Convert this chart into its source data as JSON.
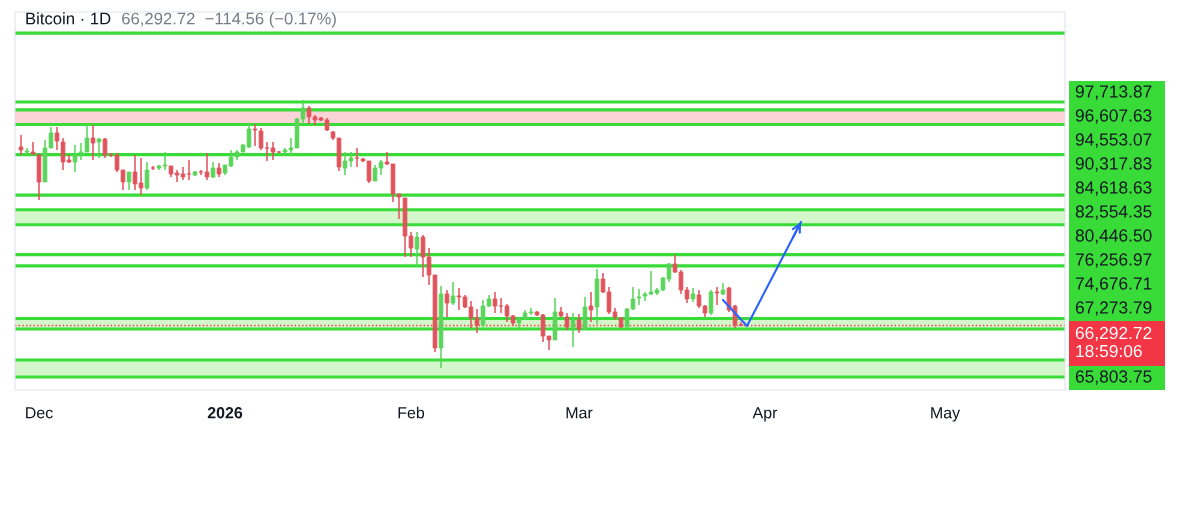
{
  "chart_data": {
    "type": "candlestick",
    "title": "Bitcoin · 1D",
    "subtitle": "66,292.72  −114.56 (−0.17%)",
    "xlim": [
      "2025-11-27",
      "2026-05-21"
    ],
    "ylim": [
      57220,
      110370
    ],
    "xticks": [
      {
        "value": "2025-12-01",
        "label": "Dec"
      },
      {
        "value": "2026-01-01",
        "label": "2026"
      },
      {
        "value": "2026-02-01",
        "label": "Feb"
      },
      {
        "value": "2026-03-01",
        "label": "Mar"
      },
      {
        "value": "2026-04-01",
        "label": "Apr"
      },
      {
        "value": "2026-05-01",
        "label": "May"
      }
    ],
    "tick_labels": "x",
    "grid": false,
    "series": [
      {
        "x": [
          "2025-11-28",
          "2025-11-29",
          "2025-11-30",
          "2025-12-01",
          "2025-12-02",
          "2025-12-03",
          "2025-12-04",
          "2025-12-05",
          "2025-12-06",
          "2025-12-07",
          "2025-12-08",
          "2025-12-09",
          "2025-12-10",
          "2025-12-11",
          "2025-12-12",
          "2025-12-13",
          "2025-12-14",
          "2025-12-15",
          "2025-12-16",
          "2025-12-17",
          "2025-12-18",
          "2025-12-19",
          "2025-12-20",
          "2025-12-21",
          "2025-12-22",
          "2025-12-23",
          "2025-12-24",
          "2025-12-25",
          "2025-12-26",
          "2025-12-27",
          "2025-12-28",
          "2025-12-29",
          "2025-12-30",
          "2025-12-31",
          "2026-01-01",
          "2026-01-02",
          "2026-01-03",
          "2026-01-04",
          "2026-01-05",
          "2026-01-06",
          "2026-01-07",
          "2026-01-08",
          "2026-01-09",
          "2026-01-10",
          "2026-01-11",
          "2026-01-12",
          "2026-01-13",
          "2026-01-14",
          "2026-01-15",
          "2026-01-16",
          "2026-01-17",
          "2026-01-18",
          "2026-01-19",
          "2026-01-20",
          "2026-01-21",
          "2026-01-22",
          "2026-01-23",
          "2026-01-24",
          "2026-01-25",
          "2026-01-26",
          "2026-01-27",
          "2026-01-28",
          "2026-01-29",
          "2026-01-30",
          "2026-01-31",
          "2026-02-01",
          "2026-02-02",
          "2026-02-03",
          "2026-02-04",
          "2026-02-05",
          "2026-02-06",
          "2026-02-07",
          "2026-02-08",
          "2026-02-09",
          "2026-02-10",
          "2026-02-11",
          "2026-02-12",
          "2026-02-13",
          "2026-02-14",
          "2026-02-15",
          "2026-02-16",
          "2026-02-17",
          "2026-02-18",
          "2026-02-19",
          "2026-02-20",
          "2026-02-21",
          "2026-02-22",
          "2026-02-23",
          "2026-02-24",
          "2026-02-25",
          "2026-02-26",
          "2026-02-27",
          "2026-02-28",
          "2026-03-01",
          "2026-03-02",
          "2026-03-03",
          "2026-03-04",
          "2026-03-05",
          "2026-03-06",
          "2026-03-07",
          "2026-03-08",
          "2026-03-09",
          "2026-03-10",
          "2026-03-11",
          "2026-03-12",
          "2026-03-13",
          "2026-03-14",
          "2026-03-15",
          "2026-03-16",
          "2026-03-17",
          "2026-03-18",
          "2026-03-19",
          "2026-03-20",
          "2026-03-21",
          "2026-03-22",
          "2026-03-23",
          "2026-03-24",
          "2026-03-25",
          "2026-03-26",
          "2026-03-27",
          "2026-03-28"
        ],
        "ohlc": [
          [
            91390,
            93070,
            90260,
            90970
          ],
          [
            90680,
            91250,
            90120,
            90820
          ],
          [
            90680,
            92090,
            90260,
            90400
          ],
          [
            90260,
            90400,
            83940,
            86470
          ],
          [
            86470,
            92370,
            86470,
            91250
          ],
          [
            91250,
            94200,
            91250,
            93360
          ],
          [
            93360,
            94200,
            90970,
            92230
          ],
          [
            92090,
            92650,
            88150,
            89280
          ],
          [
            89560,
            90260,
            89140,
            89280
          ],
          [
            89280,
            91670,
            87870,
            90260
          ],
          [
            90400,
            91950,
            89560,
            90680
          ],
          [
            90680,
            94480,
            90680,
            92650
          ],
          [
            92650,
            94480,
            89560,
            91950
          ],
          [
            92090,
            92650,
            89840,
            92510
          ],
          [
            92510,
            92650,
            89840,
            90260
          ],
          [
            90260,
            90540,
            89980,
            90260
          ],
          [
            90260,
            90540,
            87870,
            88150
          ],
          [
            88150,
            88150,
            85340,
            86470
          ],
          [
            86470,
            87870,
            85340,
            87870
          ],
          [
            87870,
            90260,
            85340,
            86190
          ],
          [
            86330,
            89840,
            84640,
            85620
          ],
          [
            85620,
            89280,
            85340,
            88150
          ],
          [
            88430,
            88720,
            88150,
            88430
          ],
          [
            88430,
            88860,
            88150,
            88720
          ],
          [
            88720,
            90680,
            88150,
            88860
          ],
          [
            88720,
            88720,
            87170,
            87590
          ],
          [
            87730,
            88150,
            86470,
            87450
          ],
          [
            87590,
            88580,
            86750,
            87170
          ],
          [
            87590,
            89560,
            86750,
            87590
          ],
          [
            87450,
            88010,
            87310,
            87870
          ],
          [
            87870,
            88150,
            87450,
            87870
          ],
          [
            87870,
            90540,
            86750,
            87170
          ],
          [
            87170,
            89280,
            87030,
            88430
          ],
          [
            88430,
            89140,
            87170,
            87590
          ],
          [
            87730,
            88860,
            87450,
            88860
          ],
          [
            88720,
            90970,
            88580,
            89980
          ],
          [
            89980,
            90970,
            89560,
            90680
          ],
          [
            90680,
            91810,
            90680,
            91670
          ],
          [
            91390,
            94620,
            91250,
            93920
          ],
          [
            93920,
            94620,
            91530,
            93780
          ],
          [
            93640,
            94060,
            90970,
            91250
          ],
          [
            91250,
            92090,
            89420,
            91250
          ],
          [
            91250,
            92090,
            89560,
            90680
          ],
          [
            90680,
            90820,
            90540,
            90680
          ],
          [
            90680,
            91250,
            90260,
            90970
          ],
          [
            90970,
            92650,
            90260,
            91250
          ],
          [
            91250,
            95460,
            91250,
            95320
          ],
          [
            95320,
            98000,
            94620,
            96870
          ],
          [
            96870,
            97150,
            94620,
            95610
          ],
          [
            95610,
            95890,
            94480,
            95180
          ],
          [
            95460,
            95610,
            95040,
            95180
          ],
          [
            95180,
            95460,
            93640,
            93780
          ],
          [
            93500,
            93640,
            92370,
            92650
          ],
          [
            92650,
            92650,
            88010,
            88580
          ],
          [
            88430,
            90680,
            87450,
            89420
          ],
          [
            89420,
            90680,
            88580,
            89840
          ],
          [
            89840,
            91250,
            88580,
            89840
          ],
          [
            89700,
            89840,
            89280,
            89420
          ],
          [
            89420,
            89420,
            86330,
            86610
          ],
          [
            86610,
            88860,
            86610,
            88430
          ],
          [
            88430,
            89560,
            87450,
            89280
          ],
          [
            89280,
            90680,
            88860,
            89000
          ],
          [
            89000,
            89000,
            83650,
            84780
          ],
          [
            84780,
            84780,
            81260,
            84360
          ],
          [
            84220,
            84220,
            75920,
            78870
          ],
          [
            78870,
            79440,
            75920,
            77190
          ],
          [
            77050,
            79440,
            74800,
            78730
          ],
          [
            78730,
            79010,
            73110,
            75920
          ],
          [
            75920,
            77190,
            71980,
            73390
          ],
          [
            73390,
            73390,
            62560,
            63130
          ],
          [
            63130,
            71840,
            60310,
            70720
          ],
          [
            70720,
            71280,
            67490,
            69450
          ],
          [
            69450,
            72410,
            69170,
            70440
          ],
          [
            70440,
            71560,
            68470,
            70300
          ],
          [
            70300,
            70580,
            68750,
            68890
          ],
          [
            68890,
            69730,
            65940,
            67340
          ],
          [
            67340,
            68610,
            65240,
            66360
          ],
          [
            66360,
            69880,
            66080,
            69030
          ],
          [
            69030,
            70580,
            68890,
            70020
          ],
          [
            70020,
            71000,
            68050,
            69030
          ],
          [
            69030,
            70160,
            68050,
            69030
          ],
          [
            69030,
            69310,
            66780,
            67630
          ],
          [
            67630,
            67770,
            66220,
            66640
          ],
          [
            66640,
            67340,
            65940,
            67200
          ],
          [
            67200,
            68470,
            67060,
            68050
          ],
          [
            68050,
            68750,
            67770,
            68190
          ],
          [
            68190,
            68330,
            67630,
            67770
          ],
          [
            67770,
            67910,
            63970,
            64810
          ],
          [
            64810,
            64810,
            62850,
            64250
          ],
          [
            64250,
            70160,
            64250,
            68190
          ],
          [
            68190,
            68890,
            67490,
            67630
          ],
          [
            67490,
            68050,
            65660,
            66080
          ],
          [
            66080,
            68050,
            63270,
            67060
          ],
          [
            67060,
            67910,
            65240,
            65800
          ],
          [
            65800,
            70300,
            65660,
            68890
          ],
          [
            69030,
            71000,
            66780,
            68470
          ],
          [
            68890,
            74230,
            66500,
            72830
          ],
          [
            72830,
            73670,
            70860,
            71000
          ],
          [
            71000,
            71700,
            67910,
            68190
          ],
          [
            68190,
            68750,
            67060,
            67490
          ],
          [
            67340,
            67490,
            65940,
            66080
          ],
          [
            66080,
            68750,
            66080,
            68610
          ],
          [
            68610,
            71700,
            68470,
            70020
          ],
          [
            70160,
            71420,
            69170,
            70300
          ],
          [
            70440,
            71000,
            69730,
            70720
          ],
          [
            70720,
            73950,
            70580,
            71000
          ],
          [
            70860,
            71560,
            70580,
            71280
          ],
          [
            71280,
            73110,
            71140,
            72970
          ],
          [
            72830,
            75080,
            72410,
            74940
          ],
          [
            74940,
            76200,
            73670,
            73810
          ],
          [
            73810,
            74090,
            70720,
            71280
          ],
          [
            71280,
            71700,
            69450,
            70020
          ],
          [
            70020,
            71560,
            69590,
            70720
          ],
          [
            70580,
            71280,
            68750,
            69030
          ],
          [
            69030,
            69170,
            67490,
            68050
          ],
          [
            68050,
            71280,
            67770,
            71000
          ],
          [
            71000,
            71700,
            69170,
            70860
          ],
          [
            70720,
            72270,
            70580,
            71280
          ],
          [
            71560,
            71700,
            68190,
            68470
          ],
          [
            69030,
            69170,
            65940,
            66410
          ],
          [
            66410,
            66780,
            66220,
            66292.72
          ]
        ],
        "colors": [
          "#e0525c",
          "#5bd45b",
          "#e0525c",
          "#e0525c",
          "#5bd45b",
          "#5bd45b",
          "#e0525c",
          "#e0525c",
          "#e0525c",
          "#5bd45b",
          "#5bd45b",
          "#5bd45b",
          "#e0525c",
          "#5bd45b",
          "#e0525c",
          "#e0525c",
          "#e0525c",
          "#e0525c",
          "#5bd45b",
          "#e0525c",
          "#e0525c",
          "#5bd45b",
          "#e0525c",
          "#5bd45b",
          "#5bd45b",
          "#e0525c",
          "#e0525c",
          "#e0525c",
          "#e0525c",
          "#5bd45b",
          "#e0525c",
          "#e0525c",
          "#5bd45b",
          "#e0525c",
          "#5bd45b",
          "#5bd45b",
          "#5bd45b",
          "#5bd45b",
          "#5bd45b",
          "#e0525c",
          "#e0525c",
          "#e0525c",
          "#e0525c",
          "#e0525c",
          "#5bd45b",
          "#5bd45b",
          "#5bd45b",
          "#5bd45b",
          "#e0525c",
          "#e0525c",
          "#e0525c",
          "#e0525c",
          "#e0525c",
          "#e0525c",
          "#5bd45b",
          "#5bd45b",
          "#e0525c",
          "#e0525c",
          "#e0525c",
          "#5bd45b",
          "#5bd45b",
          "#e0525c",
          "#e0525c",
          "#e0525c",
          "#e0525c",
          "#e0525c",
          "#5bd45b",
          "#e0525c",
          "#e0525c",
          "#e0525c",
          "#5bd45b",
          "#e0525c",
          "#5bd45b",
          "#e0525c",
          "#e0525c",
          "#e0525c",
          "#e0525c",
          "#5bd45b",
          "#5bd45b",
          "#e0525c",
          "#e0525c",
          "#e0525c",
          "#e0525c",
          "#5bd45b",
          "#5bd45b",
          "#5bd45b",
          "#e0525c",
          "#e0525c",
          "#e0525c",
          "#5bd45b",
          "#e0525c",
          "#e0525c",
          "#5bd45b",
          "#e0525c",
          "#5bd45b",
          "#e0525c",
          "#5bd45b",
          "#e0525c",
          "#e0525c",
          "#e0525c",
          "#e0525c",
          "#5bd45b",
          "#5bd45b",
          "#5bd45b",
          "#5bd45b",
          "#5bd45b",
          "#5bd45b",
          "#5bd45b",
          "#5bd45b",
          "#e0525c",
          "#e0525c",
          "#e0525c",
          "#5bd45b",
          "#e0525c",
          "#e0525c",
          "#5bd45b",
          "#e0525c",
          "#5bd45b",
          "#e0525c",
          "#e0525c",
          "#e0525c"
        ]
      },
      {
        "type": "line",
        "color": "#2962ff",
        "x": [
          "2026-03-25",
          "2026-03-29",
          "2026-04-07"
        ],
        "values": [
          69880,
          66220,
          80840
        ]
      }
    ],
    "ref_lines": [
      {
        "axis": "y",
        "value": 107400,
        "color": "#39db39"
      },
      {
        "axis": "y",
        "value": 97713.87,
        "label": "97,713.87",
        "color": "#39db39"
      },
      {
        "axis": "y",
        "value": 96607.63,
        "label": "96,607.63",
        "color": "#39db39"
      },
      {
        "axis": "y",
        "value": 94553.07,
        "label": "94,553.07",
        "color": "#39db39"
      },
      {
        "axis": "y",
        "value": 90317.83,
        "label": "90,317.83",
        "color": "#39db39"
      },
      {
        "axis": "y",
        "value": 84618.63,
        "label": "84,618.63",
        "color": "#39db39"
      },
      {
        "axis": "y",
        "value": 82554.35,
        "label": "82,554.35",
        "color": "#39db39"
      },
      {
        "axis": "y",
        "value": 80446.5,
        "label": "80,446.50",
        "color": "#39db39"
      },
      {
        "axis": "y",
        "value": 76256.97,
        "label": "76,256.97",
        "color": "#39db39"
      },
      {
        "axis": "y",
        "value": 74676.71,
        "label": "74,676.71",
        "color": "#39db39"
      },
      {
        "axis": "y",
        "value": 67273.79,
        "label": "67,273.79",
        "color": "#39db39"
      },
      {
        "axis": "y",
        "value": 66292.72,
        "label": "66,292.72\n18:59:06",
        "color": "#f23645",
        "line_style": "dotted"
      },
      {
        "axis": "y",
        "value": 65803.75,
        "label": "65,803.75",
        "color": "#39db39"
      },
      {
        "axis": "y",
        "value": 61440,
        "color": "#39db39"
      },
      {
        "axis": "y",
        "value": 59050,
        "color": "#39db39"
      }
    ],
    "bands": [
      {
        "axis": "y",
        "from": 94553.07,
        "to": 96607.63,
        "color": "#fcd3d6"
      },
      {
        "axis": "y",
        "from": 80446.5,
        "to": 82554.35,
        "color": "#d3f7cb"
      },
      {
        "axis": "y",
        "from": 65803.75,
        "to": 67273.79,
        "color": "#d3f7cb"
      },
      {
        "axis": "y",
        "from": 59050,
        "to": 61440,
        "color": "#d3f7cb"
      }
    ]
  }
}
